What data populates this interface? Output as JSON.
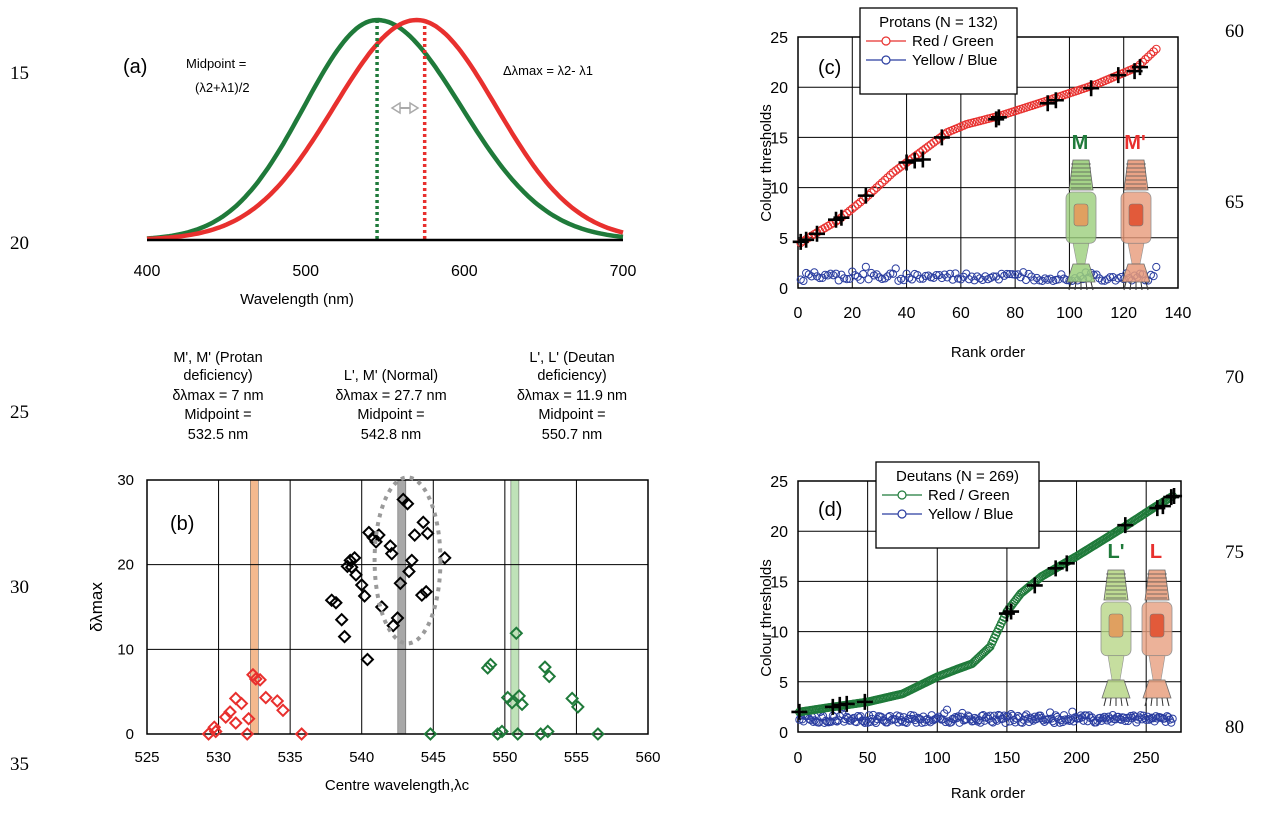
{
  "line_numbers": {
    "left": [
      "15",
      "20",
      "25",
      "30",
      "35"
    ],
    "right": [
      "60",
      "65",
      "70",
      "75",
      "80"
    ]
  },
  "colors": {
    "red": "#e8302e",
    "green": "#1f7a3a",
    "blue": "#2a3da0",
    "grid": "#000000",
    "protan_band": "#f4b98e",
    "normal_band": "#a8a8a8",
    "deutan_band": "#bfe2b8"
  },
  "panel_a": {
    "label": "(a)",
    "midpoint_label": "Midpoint =",
    "midpoint_formula": "(λ2+λ1)/2",
    "delta_label": "Δλmax = λ2- λ1",
    "xlabel": "Wavelength (nm)"
  },
  "panel_b": {
    "label": "(b)",
    "groups": [
      {
        "lines": [
          "M', M' (Protan",
          "deficiency)",
          "δλmax = 7 nm",
          "Midpoint =",
          "532.5 nm"
        ]
      },
      {
        "lines": [
          "L', M' (Normal)",
          "δλmax = 27.7 nm",
          "Midpoint =",
          "542.8 nm"
        ]
      },
      {
        "lines": [
          "L', L' (Deutan",
          "deficiency)",
          "δλmax = 11.9 nm",
          "Midpoint =",
          "550.7 nm"
        ]
      }
    ]
  },
  "panel_c": {
    "label": "(c)",
    "cone_left": "M",
    "cone_right": "M'"
  },
  "panel_d": {
    "label": "(d)",
    "cone_left": "L'",
    "cone_right": "L"
  },
  "chart_data": [
    {
      "id": "a",
      "type": "line",
      "title": "",
      "xlabel": "Wavelength (nm)",
      "ylabel": "",
      "xlim": [
        400,
        700
      ],
      "ylim": [
        0,
        1
      ],
      "xticks": [
        400,
        500,
        600,
        700
      ],
      "series": [
        {
          "color": "green",
          "peak": 545,
          "sigma_left": 46,
          "sigma_right": 53
        },
        {
          "color": "red",
          "peak": 570,
          "sigma_left": 52,
          "sigma_right": 50
        }
      ],
      "markers": [
        {
          "x": 545,
          "color": "green",
          "style": "dotted"
        },
        {
          "x": 575,
          "color": "red",
          "style": "dotted"
        }
      ]
    },
    {
      "id": "b",
      "type": "scatter",
      "title": "",
      "xlabel": "Centre wavelength,λc",
      "ylabel": "δλmax",
      "xlim": [
        525,
        560
      ],
      "ylim": [
        0,
        30
      ],
      "xticks": [
        525,
        530,
        535,
        540,
        545,
        550,
        555,
        560
      ],
      "yticks": [
        0,
        10,
        20,
        30
      ],
      "grid": true,
      "bands": [
        {
          "x": 532.5,
          "color": "protan_band"
        },
        {
          "x": 542.8,
          "color": "normal_band"
        },
        {
          "x": 550.7,
          "color": "deutan_band"
        }
      ],
      "series": [
        {
          "color": "red",
          "points": [
            [
              529.3,
              0
            ],
            [
              529.8,
              0.3
            ],
            [
              529.7,
              0.8
            ],
            [
              530.5,
              2
            ],
            [
              530.8,
              2.6
            ],
            [
              531.2,
              1.3
            ],
            [
              531.2,
              4.2
            ],
            [
              531.6,
              3.6
            ],
            [
              532.0,
              0
            ],
            [
              532.1,
              1.8
            ],
            [
              532.4,
              7
            ],
            [
              532.6,
              6.5
            ],
            [
              532.9,
              6.4
            ],
            [
              533.3,
              4.3
            ],
            [
              534.1,
              3.9
            ],
            [
              534.5,
              2.8
            ],
            [
              535.8,
              0
            ]
          ]
        },
        {
          "color": "black",
          "points": [
            [
              537.9,
              15.8
            ],
            [
              538.2,
              15.5
            ],
            [
              538.6,
              13.5
            ],
            [
              538.8,
              11.5
            ],
            [
              539.0,
              19.8
            ],
            [
              539.2,
              20.5
            ],
            [
              539.3,
              19.7
            ],
            [
              539.5,
              20.8
            ],
            [
              539.6,
              18.8
            ],
            [
              540.0,
              17.6
            ],
            [
              540.2,
              16.3
            ],
            [
              540.4,
              8.8
            ],
            [
              540.5,
              23.8
            ],
            [
              540.8,
              23.2
            ],
            [
              541.0,
              22.7
            ],
            [
              541.2,
              23.5
            ],
            [
              541.4,
              15.0
            ],
            [
              542.0,
              22.2
            ],
            [
              542.1,
              21.3
            ],
            [
              542.2,
              12.8
            ],
            [
              542.5,
              13.7
            ],
            [
              542.7,
              17.8
            ],
            [
              542.9,
              27.7
            ],
            [
              543.2,
              27.2
            ],
            [
              543.3,
              19.2
            ],
            [
              543.5,
              20.5
            ],
            [
              543.7,
              23.5
            ],
            [
              544.2,
              16.4
            ],
            [
              544.5,
              16.8
            ],
            [
              544.3,
              25.0
            ],
            [
              544.6,
              23.7
            ],
            [
              545.8,
              20.8
            ]
          ]
        },
        {
          "color": "green",
          "points": [
            [
              544.8,
              0
            ],
            [
              548.8,
              7.8
            ],
            [
              549.0,
              8.2
            ],
            [
              549.5,
              0
            ],
            [
              549.8,
              0.3
            ],
            [
              550.2,
              4.3
            ],
            [
              550.5,
              3.7
            ],
            [
              550.8,
              11.9
            ],
            [
              550.9,
              0
            ],
            [
              551.0,
              4.5
            ],
            [
              551.2,
              3.5
            ],
            [
              552.5,
              0
            ],
            [
              552.8,
              7.9
            ],
            [
              553.0,
              0.3
            ],
            [
              553.1,
              6.8
            ],
            [
              554.7,
              4.2
            ],
            [
              555.1,
              3.2
            ],
            [
              556.5,
              0
            ]
          ]
        }
      ],
      "ellipse": {
        "cx": 543.2,
        "cy": 20.5,
        "rx": 2.3,
        "ry": 9.8
      }
    },
    {
      "id": "c",
      "type": "scatter",
      "title": "",
      "xlabel": "Rank order",
      "ylabel": "Colour thresholds",
      "xlim": [
        0,
        140
      ],
      "ylim": [
        0,
        25
      ],
      "xticks": [
        0,
        20,
        40,
        60,
        80,
        100,
        120,
        140
      ],
      "yticks": [
        0,
        5,
        10,
        15,
        20,
        25
      ],
      "grid": true,
      "legend": {
        "title": "Protans (N = 132)",
        "entries": [
          "Red / Green",
          "Yellow / Blue"
        ],
        "placement": "top-left"
      },
      "n": 132,
      "red_green_profile": [
        [
          1,
          4.5
        ],
        [
          5,
          5.2
        ],
        [
          15,
          6.8
        ],
        [
          25,
          9.0
        ],
        [
          35,
          11.5
        ],
        [
          45,
          13.5
        ],
        [
          55,
          15.5
        ],
        [
          62,
          16.3
        ],
        [
          75,
          17.2
        ],
        [
          90,
          18.5
        ],
        [
          110,
          20.3
        ],
        [
          125,
          22.0
        ],
        [
          132,
          23.8
        ]
      ],
      "yellow_blue_level": 1.1,
      "crosses": [
        [
          1,
          4.6
        ],
        [
          3,
          4.8
        ],
        [
          7,
          5.4
        ],
        [
          14,
          6.8
        ],
        [
          16,
          7.0
        ],
        [
          25,
          9.2
        ],
        [
          40,
          12.5
        ],
        [
          43,
          12.7
        ],
        [
          46,
          12.8
        ],
        [
          53,
          15.0
        ],
        [
          73,
          16.8
        ],
        [
          74,
          17.0
        ],
        [
          92,
          18.4
        ],
        [
          95,
          18.7
        ],
        [
          108,
          19.9
        ],
        [
          118,
          21.2
        ],
        [
          124,
          21.6
        ],
        [
          126,
          22.0
        ]
      ]
    },
    {
      "id": "d",
      "type": "scatter",
      "title": "",
      "xlabel": "Rank order",
      "ylabel": "Colour thresholds",
      "xlim": [
        0,
        275
      ],
      "ylim": [
        0,
        25
      ],
      "xticks": [
        0,
        50,
        100,
        150,
        200,
        250
      ],
      "yticks": [
        0,
        5,
        10,
        15,
        20,
        25
      ],
      "grid": true,
      "legend": {
        "title": "Deutans (N = 269)",
        "entries": [
          "Red / Green",
          "Yellow / Blue"
        ],
        "placement": "top-left"
      },
      "n": 269,
      "red_green_profile": [
        [
          1,
          2.0
        ],
        [
          25,
          2.5
        ],
        [
          50,
          3.0
        ],
        [
          75,
          3.8
        ],
        [
          100,
          5.5
        ],
        [
          115,
          6.3
        ],
        [
          125,
          6.8
        ],
        [
          138,
          8.5
        ],
        [
          150,
          12.0
        ],
        [
          160,
          13.8
        ],
        [
          175,
          15.5
        ],
        [
          200,
          17.5
        ],
        [
          235,
          20.5
        ],
        [
          255,
          22.3
        ],
        [
          269,
          23.5
        ]
      ],
      "yellow_blue_level": 1.3,
      "crosses": [
        [
          1,
          2.0
        ],
        [
          25,
          2.5
        ],
        [
          30,
          2.7
        ],
        [
          35,
          2.8
        ],
        [
          48,
          3.0
        ],
        [
          150,
          11.8
        ],
        [
          153,
          12.0
        ],
        [
          170,
          14.6
        ],
        [
          185,
          16.3
        ],
        [
          193,
          16.8
        ],
        [
          235,
          20.6
        ],
        [
          258,
          22.3
        ],
        [
          262,
          22.5
        ],
        [
          268,
          23.4
        ],
        [
          270,
          23.5
        ]
      ]
    }
  ]
}
